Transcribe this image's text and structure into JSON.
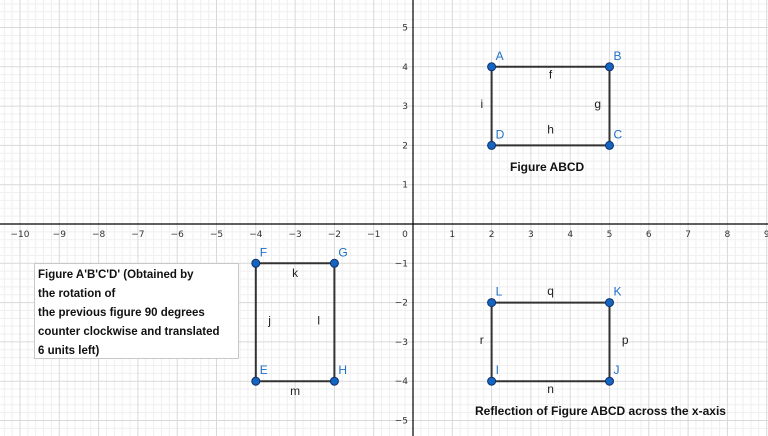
{
  "colors": {
    "axis": "#000000",
    "grid_major": "#d9d9d9",
    "grid_minor": "#efefef",
    "polygon": "#333333",
    "point_fill": "#1565c0",
    "point_stroke": "#0d2f6b",
    "point_label": "#1f6fc4"
  },
  "axes": {
    "x_ticks": [
      "−10",
      "−9",
      "−8",
      "−7",
      "−6",
      "−5",
      "−4",
      "−3",
      "−2",
      "−1",
      "0",
      "1",
      "2",
      "3",
      "4",
      "5",
      "6",
      "7",
      "8",
      "9"
    ],
    "y_ticks_pos": [
      "5",
      "4",
      "3",
      "2",
      "1"
    ],
    "y_ticks_neg": [
      "−1",
      "−2",
      "−3",
      "−4",
      "−5"
    ]
  },
  "polygons": [
    {
      "name": "Figure ABCD",
      "points": [
        {
          "label": "A",
          "x": 2,
          "y": 4
        },
        {
          "label": "B",
          "x": 5,
          "y": 4
        },
        {
          "label": "C",
          "x": 5,
          "y": 2
        },
        {
          "label": "D",
          "x": 2,
          "y": 2
        }
      ],
      "segments": [
        {
          "label": "f",
          "x": 3.5,
          "y": 3.8
        },
        {
          "label": "g",
          "x": 4.7,
          "y": 3.05
        },
        {
          "label": "h",
          "x": 3.5,
          "y": 2.4
        },
        {
          "label": "i",
          "x": 1.75,
          "y": 3.05
        }
      ]
    },
    {
      "name": "Figure A'B'C'D'",
      "points": [
        {
          "label": "F",
          "x": -4,
          "y": -1
        },
        {
          "label": "G",
          "x": -2,
          "y": -1
        },
        {
          "label": "H",
          "x": -2,
          "y": -4
        },
        {
          "label": "E",
          "x": -4,
          "y": -4
        }
      ],
      "segments": [
        {
          "label": "k",
          "x": -3,
          "y": -1.25
        },
        {
          "label": "l",
          "x": -2.4,
          "y": -2.45
        },
        {
          "label": "m",
          "x": -3,
          "y": -4.25
        },
        {
          "label": "j",
          "x": -3.65,
          "y": -2.45
        }
      ]
    },
    {
      "name": "Reflection of Figure ABCD",
      "points": [
        {
          "label": "L",
          "x": 2,
          "y": -2
        },
        {
          "label": "K",
          "x": 5,
          "y": -2
        },
        {
          "label": "J",
          "x": 5,
          "y": -4
        },
        {
          "label": "I",
          "x": 2,
          "y": -4
        }
      ],
      "segments": [
        {
          "label": "q",
          "x": 3.5,
          "y": -1.7
        },
        {
          "label": "p",
          "x": 5.4,
          "y": -2.95
        },
        {
          "label": "n",
          "x": 3.5,
          "y": -4.2
        },
        {
          "label": "r",
          "x": 1.75,
          "y": -2.95
        }
      ]
    }
  ],
  "captions": {
    "abcd": "Figure ABCD",
    "reflection": "Reflection of Figure ABCD across the x-axis"
  },
  "textbox": {
    "lines": [
      "Figure A'B'C'D' (Obtained by",
      "the rotation of",
      "the previous figure 90 degrees",
      "counter clockwise and translated",
      "6 units left)"
    ]
  }
}
